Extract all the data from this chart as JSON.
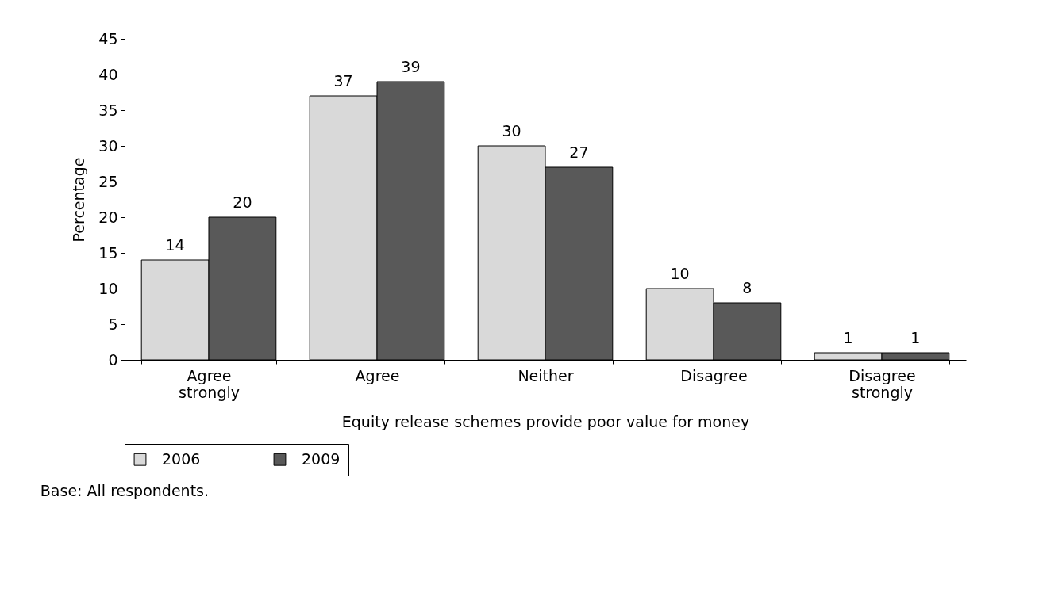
{
  "chart_data": {
    "type": "bar",
    "xlabel": "Equity release schemes provide poor value for money",
    "ylabel": "Percentage",
    "categories": [
      "Agree strongly",
      "Agree",
      "Neither",
      "Disagree",
      "Disagree strongly"
    ],
    "series": [
      {
        "name": "2006",
        "color": "#d9d9d9",
        "values": [
          14,
          37,
          30,
          10,
          1
        ]
      },
      {
        "name": "2009",
        "color": "#595959",
        "values": [
          20,
          39,
          27,
          8,
          1
        ]
      }
    ],
    "ylim": [
      0,
      45
    ],
    "yticks": [
      0,
      5,
      10,
      15,
      20,
      25,
      30,
      35,
      40,
      45
    ],
    "grid": false,
    "legend": "bottom",
    "data_labels": true,
    "annotations": [
      "Base: All respondents."
    ]
  }
}
